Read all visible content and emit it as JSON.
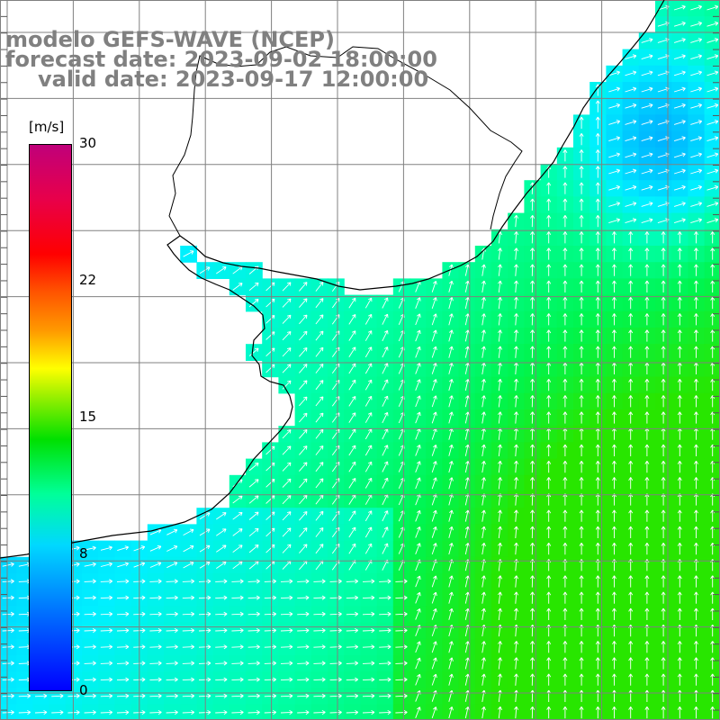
{
  "header": {
    "line1": "modelo GEFS-WAVE (NCEP)",
    "line2": "forecast date: 2023-09-02 18:00:00",
    "line3": "valid date: 2023-09-17 12:00:00"
  },
  "colorbar": {
    "units": "[m/s]",
    "ticks": [
      {
        "value": 30,
        "label": "30"
      },
      {
        "value": 22,
        "label": "22"
      },
      {
        "value": 15,
        "label": "15"
      },
      {
        "value": 8,
        "label": "8"
      },
      {
        "value": 0,
        "label": "0"
      }
    ],
    "colors": [
      "#0000ff",
      "#00d8ff",
      "#00e000",
      "#ffff00",
      "#ff0000",
      "#c0007a"
    ]
  },
  "map": {
    "land_color": "#ffffff",
    "coastline_color": "#000000",
    "grid_color": "#808080",
    "arrow_color": "#ffffff"
  }
}
